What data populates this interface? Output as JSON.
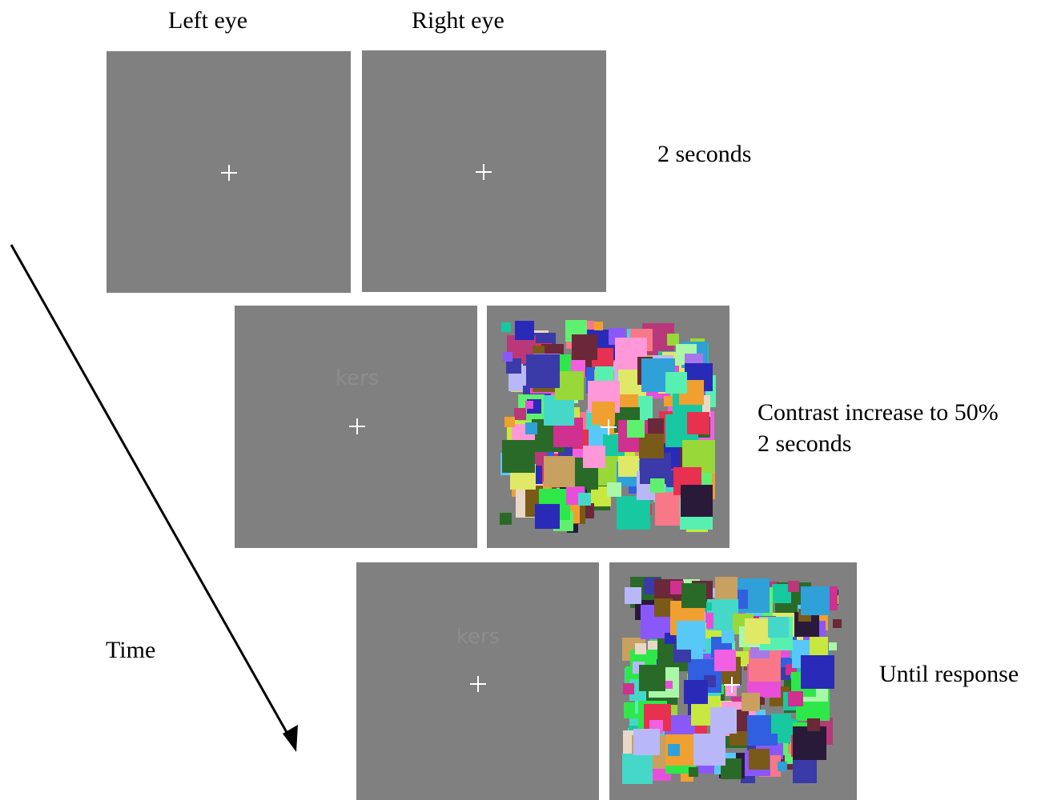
{
  "headers": {
    "left_eye": "Left eye",
    "right_eye": "Right eye"
  },
  "axis": {
    "time_label": "Time"
  },
  "frames": [
    {
      "timing_lines": [
        "2 seconds"
      ],
      "left_word": "",
      "right_has_mask": false
    },
    {
      "timing_lines": [
        "Contrast increase to 50%",
        "2 seconds"
      ],
      "left_word": "kers",
      "right_has_mask": true
    },
    {
      "timing_lines": [
        "Until response"
      ],
      "left_word": "kers",
      "right_has_mask": true
    }
  ],
  "colors": {
    "panel_gray": "#808080",
    "word_gray": "#8d8d8d",
    "fixation": "#ffffff"
  },
  "mask_description": "Mondrian mask of overlapping colored squares"
}
